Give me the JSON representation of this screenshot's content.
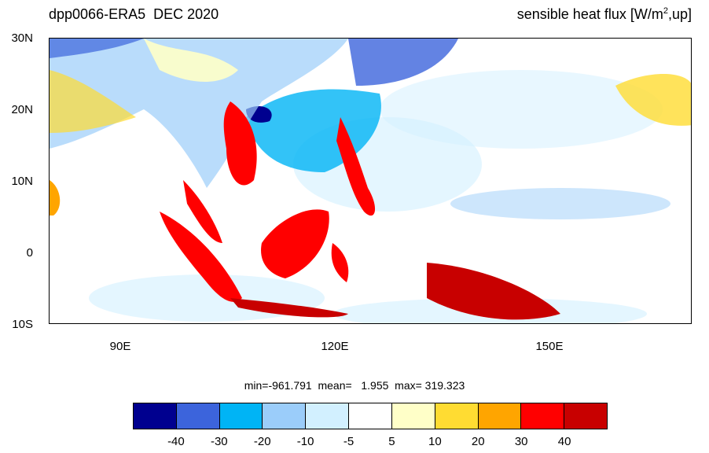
{
  "header": {
    "left_title": "dpp0066-ERA5  DEC 2020",
    "right_title_main": "sensible heat flux [W/m",
    "right_title_sup": "2",
    "right_title_tail": ",up]"
  },
  "map": {
    "lat_labels": [
      "30N",
      "20N",
      "10N",
      "0",
      "10S"
    ],
    "lon_labels": [
      "90E",
      "120E",
      "150E"
    ]
  },
  "stats": {
    "text": "min=-961.791  mean=   1.955  max= 319.323"
  },
  "colorbar": {
    "colors": [
      "#00008f",
      "#3c64dc",
      "#00b4f5",
      "#9bcdfa",
      "#d2f0ff",
      "#ffffff",
      "#ffffc8",
      "#ffdc32",
      "#ffa500",
      "#ff0000",
      "#c80000"
    ],
    "labels": [
      "-40",
      "-30",
      "-20",
      "-10",
      "-5",
      "5",
      "10",
      "20",
      "30",
      "40"
    ]
  }
}
